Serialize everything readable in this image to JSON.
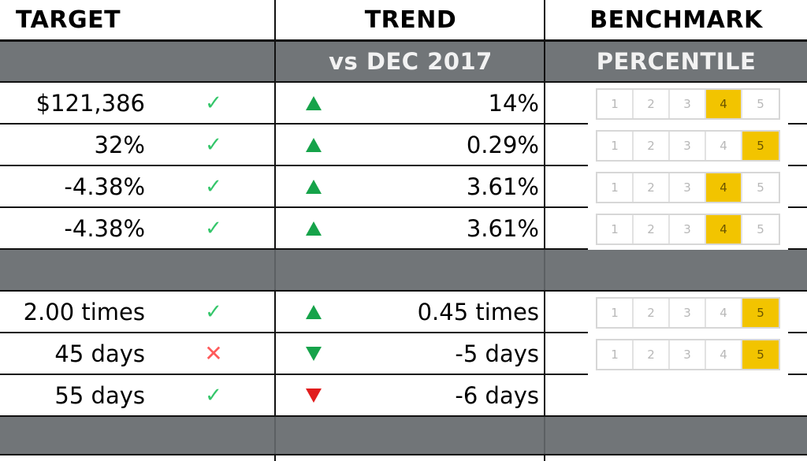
{
  "header": {
    "target": "TARGET",
    "trend": "TREND",
    "benchmark": "BENCHMARK"
  },
  "subheader": {
    "trend": "vs DEC 2017",
    "benchmark": "PERCENTILE"
  },
  "colors": {
    "section_gray": "#717578",
    "up_green": "#16a34a",
    "down_red": "#e11d1d",
    "pct_active": "#f2c400"
  },
  "icons": {
    "ok": "checkmark-icon",
    "bad": "cross-icon"
  },
  "glyphs": {
    "ok": "✓",
    "bad": "✕"
  },
  "rows": [
    {
      "target": "$121,386",
      "status": "ok",
      "trend_dir": "up",
      "trend": "14%",
      "percentile": [
        "1",
        "2",
        "3",
        "4",
        "5"
      ],
      "active": 4
    },
    {
      "target": "32%",
      "status": "ok",
      "trend_dir": "up",
      "trend": "0.29%",
      "percentile": [
        "1",
        "2",
        "3",
        "4",
        "5"
      ],
      "active": 5
    },
    {
      "target": "-4.38%",
      "status": "ok",
      "trend_dir": "up",
      "trend": "3.61%",
      "percentile": [
        "1",
        "2",
        "3",
        "4",
        "5"
      ],
      "active": 4
    },
    {
      "target": "-4.38%",
      "status": "ok",
      "trend_dir": "up",
      "trend": "3.61%",
      "percentile": [
        "1",
        "2",
        "3",
        "4",
        "5"
      ],
      "active": 4
    },
    {
      "target": "2.00 times",
      "status": "ok",
      "trend_dir": "up",
      "trend": "0.45 times",
      "percentile": [
        "1",
        "2",
        "3",
        "4",
        "5"
      ],
      "active": 5
    },
    {
      "target": "45 days",
      "status": "bad",
      "trend_dir": "down-green",
      "trend": "-5 days",
      "percentile": [
        "1",
        "2",
        "3",
        "4",
        "5"
      ],
      "active": 5
    },
    {
      "target": "55 days",
      "status": "ok",
      "trend_dir": "down-red",
      "trend": "-6 days"
    }
  ]
}
